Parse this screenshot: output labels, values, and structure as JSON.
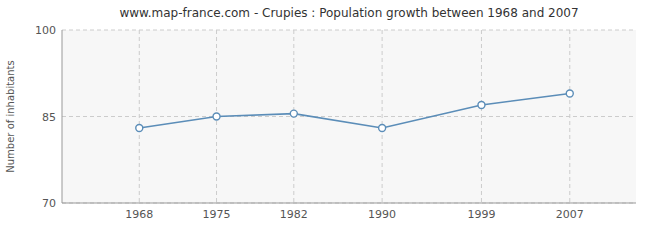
{
  "chart_data": {
    "type": "line",
    "title": "www.map-france.com - Crupies : Population growth between 1968 and 2007",
    "ylabel": "Number of inhabitants",
    "x": [
      1968,
      1975,
      1982,
      1990,
      1999,
      2007
    ],
    "values": [
      83,
      85,
      85.5,
      83,
      87,
      89
    ],
    "color": "#5b8db8",
    "marker": "circle",
    "xlim": [
      1961,
      2013
    ],
    "xticks": [
      1968,
      1975,
      1982,
      1990,
      1999,
      2007
    ],
    "ylim": [
      70,
      100
    ],
    "yticks": [
      70,
      85,
      100
    ],
    "grid": true
  }
}
